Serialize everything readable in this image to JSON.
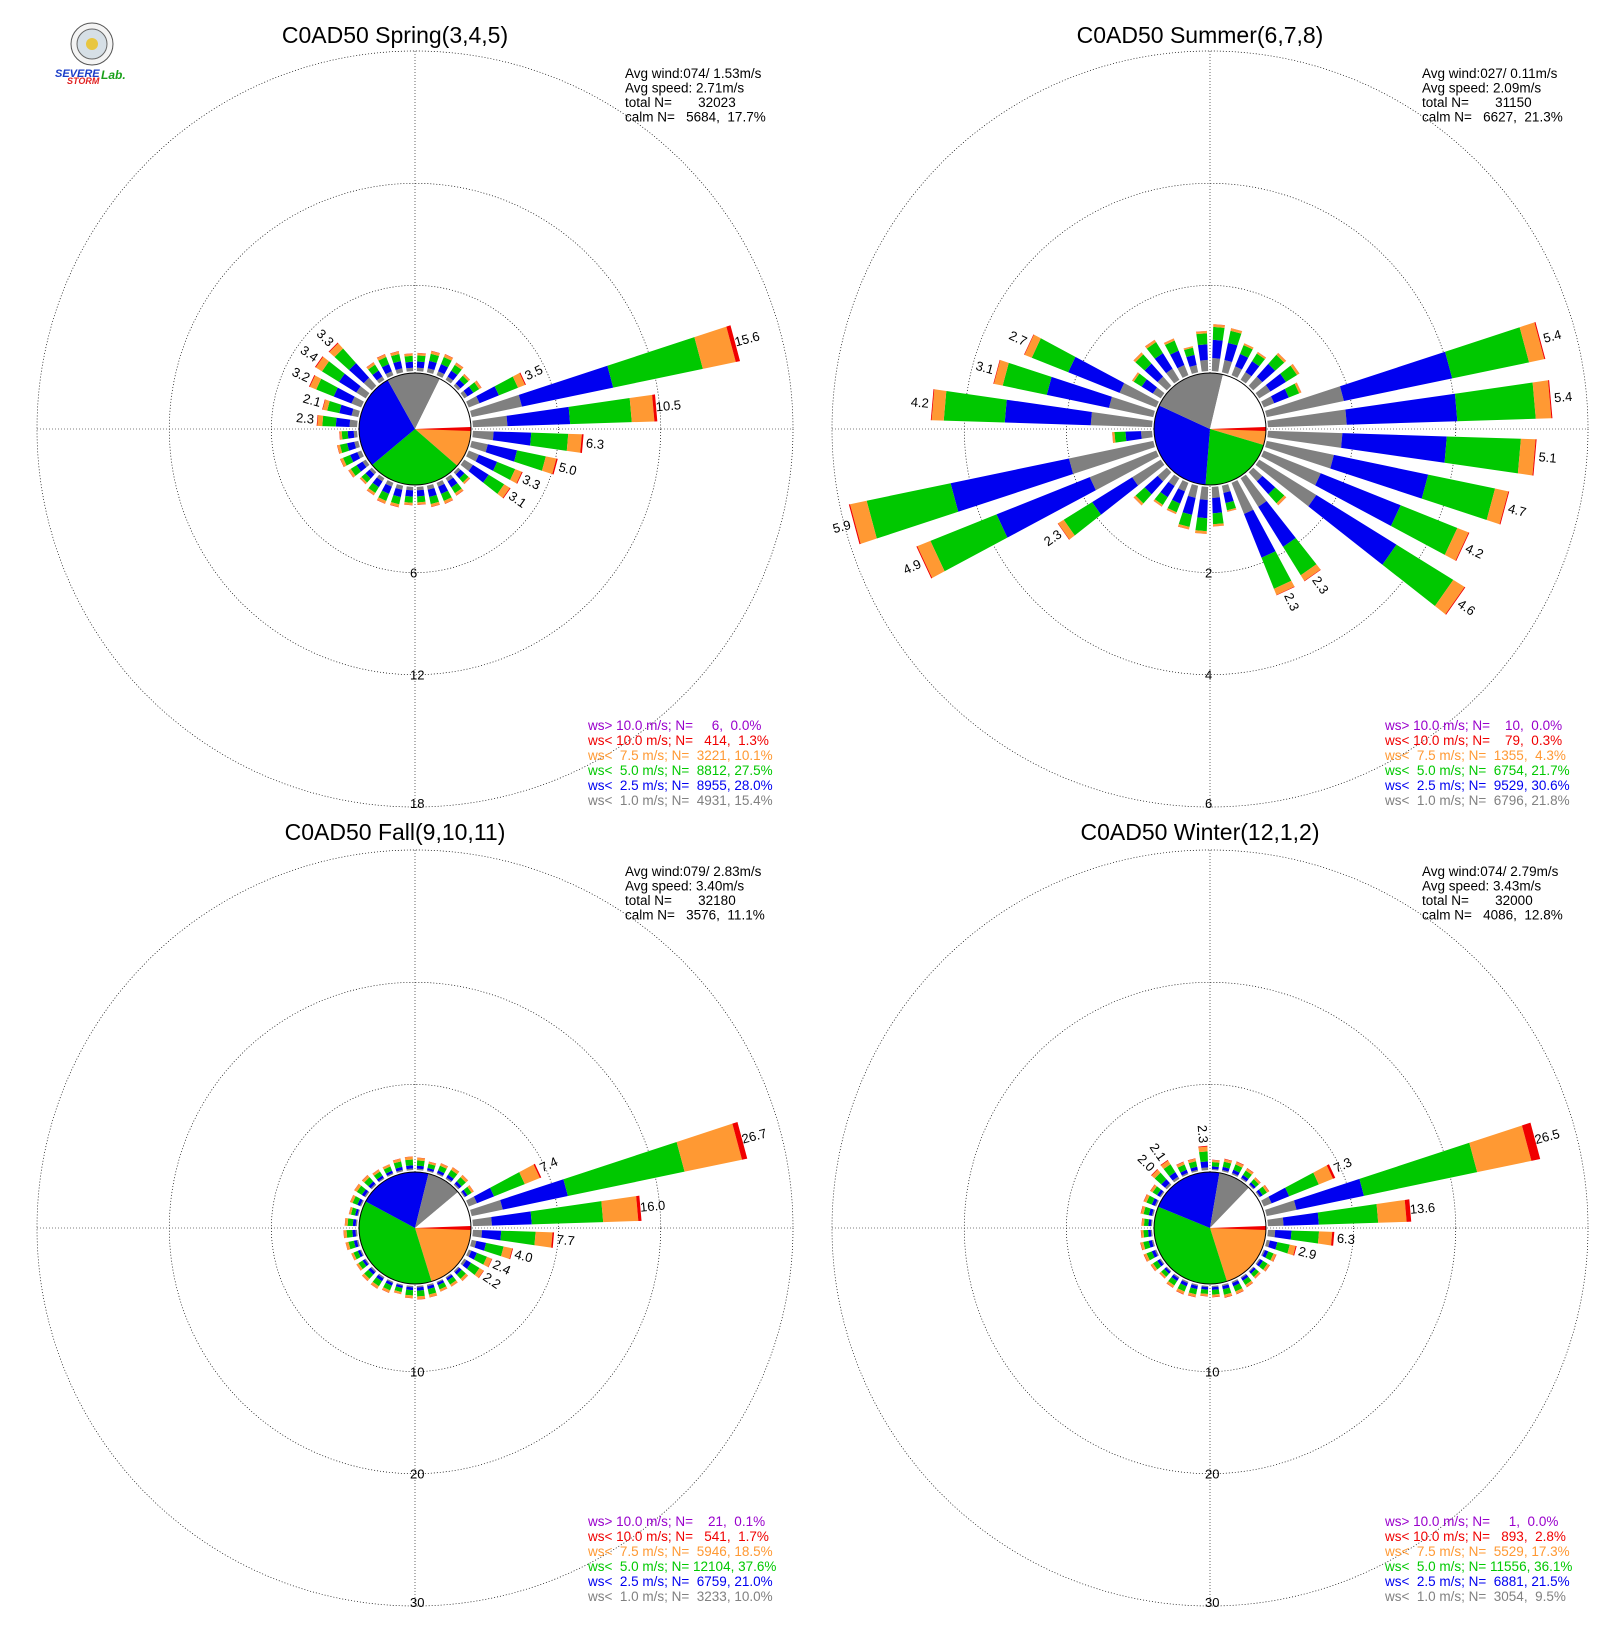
{
  "colors": {
    "gray": "#808080",
    "blue": "#0000f0",
    "green": "#00c800",
    "orange": "#ff9933",
    "red": "#f00000",
    "purple": "#9900cc",
    "calm": "#ffffff"
  },
  "logo": {
    "name": "severe-storm-lab-logo",
    "text": "SEVERE STORM Lab."
  },
  "chart_data": [
    {
      "type": "windrose",
      "title": "C0AD50 Spring(3,4,5)",
      "stats": [
        "Avg wind:074/ 1.53m/s",
        "Avg speed: 2.71m/s",
        "total N=       32023",
        "calm N=   5684,  17.7%"
      ],
      "ring_labels": [
        "6",
        "12",
        "18"
      ],
      "ring_max": 18,
      "bar_labels": [
        "15.6",
        "10.5",
        "6.3",
        "5.0",
        "3.3",
        "3.1",
        "3.5",
        "3.4",
        "3.3",
        "3.2",
        "2.1",
        "2.3"
      ],
      "bar_directions_deg": [
        75,
        85,
        95,
        105,
        115,
        125,
        65,
        305,
        315,
        295,
        285,
        275
      ],
      "bar_totals_pct": [
        15.6,
        10.5,
        6.3,
        5.0,
        3.3,
        3.1,
        3.5,
        3.4,
        3.3,
        3.2,
        2.1,
        2.3
      ],
      "legend": [
        {
          "text": "ws> 10.0 m/s; N=     6,  0.0%",
          "color": "purple"
        },
        {
          "text": "ws< 10.0 m/s; N=   414,  1.3%",
          "color": "red"
        },
        {
          "text": "ws<  7.5 m/s; N=  3221, 10.1%",
          "color": "orange"
        },
        {
          "text": "ws<  5.0 m/s; N=  8812, 27.5%",
          "color": "green"
        },
        {
          "text": "ws<  2.5 m/s; N=  8955, 28.0%",
          "color": "blue"
        },
        {
          "text": "ws<  1.0 m/s; N=  4931, 15.4%",
          "color": "gray"
        }
      ],
      "class_pct": [
        15.4,
        28.0,
        27.5,
        10.1,
        1.3,
        0.0
      ]
    },
    {
      "type": "windrose",
      "title": "C0AD50 Summer(6,7,8)",
      "stats": [
        "Avg wind:027/ 0.11m/s",
        "Avg speed: 2.09m/s",
        "total N=       31150",
        "calm N=   6627,  21.3%"
      ],
      "ring_labels": [
        "2",
        "4",
        "6"
      ],
      "ring_max": 6,
      "bar_labels": [
        "5.4",
        "5.4",
        "5.1",
        "4.7",
        "4.2",
        "4.6",
        "2.3",
        "2.3",
        "2.3",
        "4.9",
        "5.9",
        "4.2",
        "3.1",
        "2.7"
      ],
      "bar_directions_deg": [
        75,
        85,
        95,
        105,
        115,
        125,
        145,
        155,
        235,
        245,
        255,
        275,
        285,
        295
      ],
      "bar_totals_pct": [
        5.4,
        5.4,
        5.1,
        4.7,
        4.2,
        4.6,
        2.3,
        2.3,
        2.3,
        4.9,
        5.9,
        4.2,
        3.1,
        2.7
      ],
      "legend": [
        {
          "text": "ws> 10.0 m/s; N=    10,  0.0%",
          "color": "purple"
        },
        {
          "text": "ws< 10.0 m/s; N=    79,  0.3%",
          "color": "red"
        },
        {
          "text": "ws<  7.5 m/s; N=  1355,  4.3%",
          "color": "orange"
        },
        {
          "text": "ws<  5.0 m/s; N=  6754, 21.7%",
          "color": "green"
        },
        {
          "text": "ws<  2.5 m/s; N=  9529, 30.6%",
          "color": "blue"
        },
        {
          "text": "ws<  1.0 m/s; N=  6796, 21.8%",
          "color": "gray"
        }
      ],
      "class_pct": [
        21.8,
        30.6,
        21.7,
        4.3,
        0.3,
        0.0
      ]
    },
    {
      "type": "windrose",
      "title": "C0AD50 Fall(9,10,11)",
      "stats": [
        "Avg wind:079/ 2.83m/s",
        "Avg speed: 3.40m/s",
        "total N=       32180",
        "calm N=   3576,  11.1%"
      ],
      "ring_labels": [
        "10",
        "20",
        "30"
      ],
      "ring_max": 30,
      "bar_labels": [
        "26.7",
        "16.0",
        "7.7",
        "4.0",
        "2.4",
        "2.2",
        "7.4"
      ],
      "bar_directions_deg": [
        75,
        85,
        95,
        105,
        115,
        125,
        65
      ],
      "bar_totals_pct": [
        26.7,
        16.0,
        7.7,
        4.0,
        2.4,
        2.2,
        7.4
      ],
      "legend": [
        {
          "text": "ws> 10.0 m/s; N=    21,  0.1%",
          "color": "purple"
        },
        {
          "text": "ws< 10.0 m/s; N=   541,  1.7%",
          "color": "red"
        },
        {
          "text": "ws<  7.5 m/s; N=  5946, 18.5%",
          "color": "orange"
        },
        {
          "text": "ws<  5.0 m/s; N= 12104, 37.6%",
          "color": "green"
        },
        {
          "text": "ws<  2.5 m/s; N=  6759, 21.0%",
          "color": "blue"
        },
        {
          "text": "ws<  1.0 m/s; N=  3233, 10.0%",
          "color": "gray"
        }
      ],
      "class_pct": [
        10.0,
        21.0,
        37.6,
        18.5,
        1.7,
        0.1
      ]
    },
    {
      "type": "windrose",
      "title": "C0AD50 Winter(12,1,2)",
      "stats": [
        "Avg wind:074/ 2.79m/s",
        "Avg speed: 3.43m/s",
        "total N=       32000",
        "calm N=   4086,  12.8%"
      ],
      "ring_labels": [
        "10",
        "20",
        "30"
      ],
      "ring_max": 30,
      "bar_labels": [
        "26.5",
        "13.6",
        "6.3",
        "2.9",
        "7.3",
        "2.3",
        "2.1",
        "2.0"
      ],
      "bar_directions_deg": [
        75,
        85,
        95,
        105,
        65,
        355,
        325,
        315
      ],
      "bar_totals_pct": [
        26.5,
        13.6,
        6.3,
        2.9,
        7.3,
        2.3,
        2.1,
        2.0
      ],
      "legend": [
        {
          "text": "ws> 10.0 m/s; N=     1,  0.0%",
          "color": "purple"
        },
        {
          "text": "ws< 10.0 m/s; N=   893,  2.8%",
          "color": "red"
        },
        {
          "text": "ws<  7.5 m/s; N=  5529, 17.3%",
          "color": "orange"
        },
        {
          "text": "ws<  5.0 m/s; N= 11556, 36.1%",
          "color": "green"
        },
        {
          "text": "ws<  2.5 m/s; N=  6881, 21.5%",
          "color": "blue"
        },
        {
          "text": "ws<  1.0 m/s; N=  3054,  9.5%",
          "color": "gray"
        }
      ],
      "class_pct": [
        9.5,
        21.5,
        36.1,
        17.3,
        2.8,
        0.0
      ]
    }
  ]
}
